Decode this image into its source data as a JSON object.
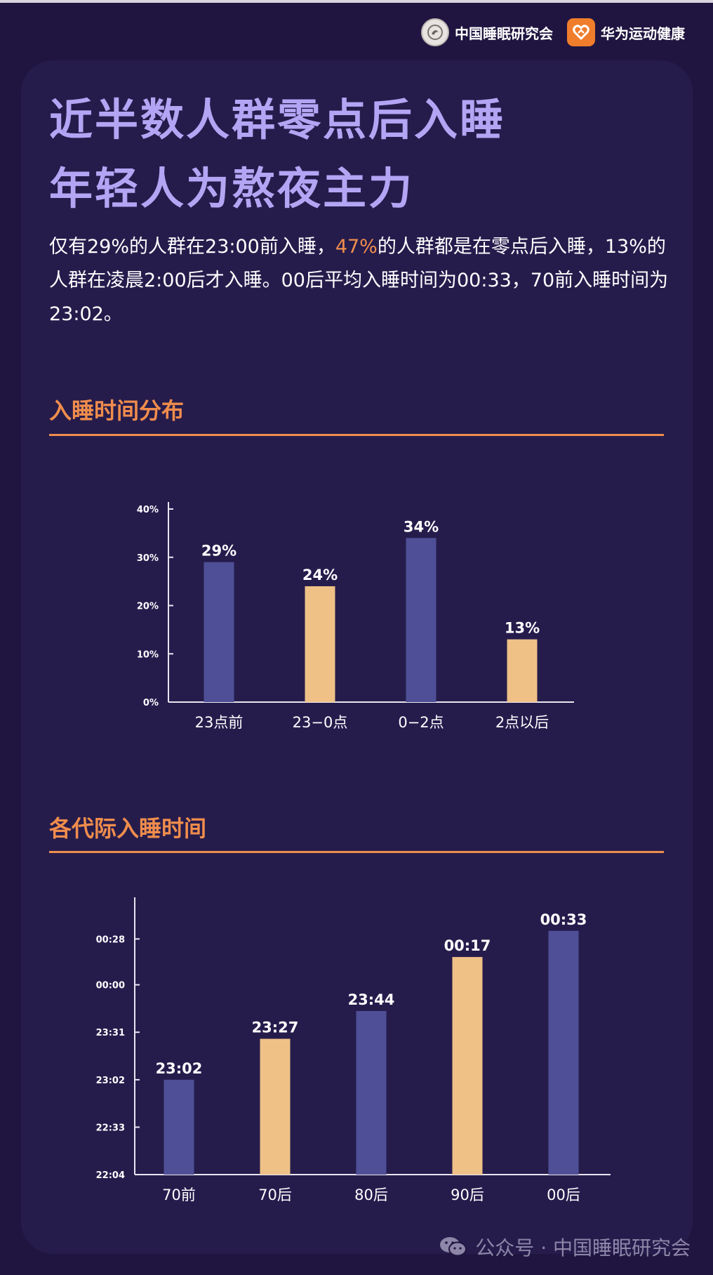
{
  "header": {
    "logos": [
      {
        "name": "中国睡眠研究会",
        "icon": "sleep-society-emblem-icon"
      },
      {
        "name": "华为运动健康",
        "icon": "huawei-health-heart-icon",
        "color": "#ef7d2c"
      }
    ]
  },
  "title": {
    "line1": "近半数人群零点后入睡",
    "line2": "年轻人为熬夜主力"
  },
  "description": {
    "part1": "仅有29%的人群在23:00前入睡，",
    "highlight": "47%",
    "part2": "的人群都是在零点后入睡，13%的人群在凌晨2:00后才入睡。00后平均入睡时间为00:33，70前入睡时间为23:02。"
  },
  "sections": {
    "distribution_title": "入睡时间分布",
    "generation_title": "各代际入睡时间"
  },
  "colors": {
    "background": "#201540",
    "card": "#261c4c",
    "title": "#b4a5f4",
    "accent": "#f08d4c",
    "bar_purple": "#4f4f97",
    "bar_gold": "#efc187"
  },
  "chart_data": [
    {
      "type": "bar",
      "categories": [
        "23点前",
        "23−0点",
        "0−2点",
        "2点以后"
      ],
      "values": [
        29,
        24,
        34,
        13
      ],
      "value_labels": [
        "29%",
        "24%",
        "34%",
        "13%"
      ],
      "bar_colors": [
        "#4f4f97",
        "#efc187",
        "#4f4f97",
        "#efc187"
      ],
      "yticks": [
        "0%",
        "10%",
        "20%",
        "30%",
        "40%"
      ],
      "ylim": [
        0,
        40
      ],
      "grid": false
    },
    {
      "type": "bar",
      "categories": [
        "70前",
        "70后",
        "80后",
        "90后",
        "00后"
      ],
      "values": [
        23.033,
        23.45,
        23.733,
        24.283,
        24.55
      ],
      "value_labels": [
        "23:02",
        "23:27",
        "23:44",
        "00:17",
        "00:33"
      ],
      "bar_colors": [
        "#4f4f97",
        "#efc187",
        "#4f4f97",
        "#efc187",
        "#4f4f97"
      ],
      "yticks": [
        "22:04",
        "22:33",
        "23:02",
        "23:31",
        "00:00",
        "00:28"
      ],
      "ytick_values": [
        22.067,
        22.55,
        23.033,
        23.517,
        24.0,
        24.467
      ],
      "ylim": [
        22.067,
        24.82
      ],
      "grid": false
    }
  ],
  "watermark": "公众号 · 中国睡眠研究会"
}
